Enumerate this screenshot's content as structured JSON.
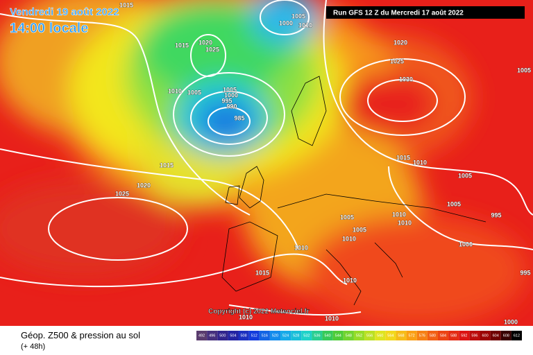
{
  "header": {
    "date": "Vendredi 19 août 2022",
    "time": "14:00 locale",
    "run": "Run GFS 12 Z du Mercredi 17 août 2022",
    "copyright": "Copyright (c) 2022 Meteociel.fr"
  },
  "legend": {
    "title": "Géop. Z500 & pression au sol",
    "lead": "(+ 48h)",
    "scale": [
      492,
      496,
      500,
      504,
      508,
      512,
      516,
      520,
      524,
      528,
      532,
      536,
      540,
      544,
      548,
      552,
      556,
      560,
      564,
      568,
      572,
      576,
      580,
      584,
      588,
      592,
      596,
      600,
      604,
      608,
      612
    ]
  },
  "isobars": [
    1015,
    1005,
    1000,
    1010,
    1015,
    1020,
    1025,
    1020,
    1025,
    1030,
    1005,
    1010,
    1005,
    1005,
    1000,
    995,
    990,
    985,
    1015,
    1020,
    1025,
    1015,
    1010,
    1005,
    1005,
    995,
    1010,
    1010,
    1005,
    1005,
    1010,
    1010,
    1000,
    995,
    1015,
    1010,
    1010,
    1010,
    1000
  ]
}
